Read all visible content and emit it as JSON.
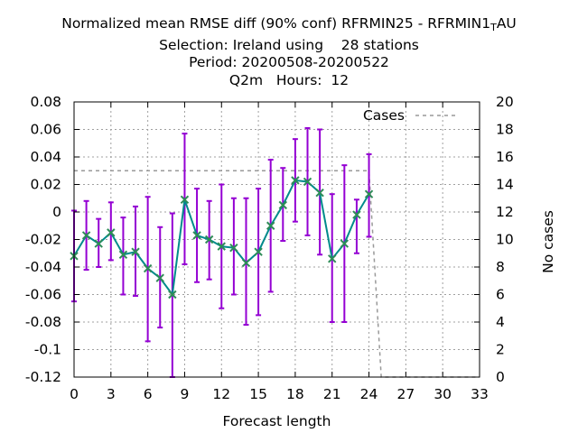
{
  "chart_data": {
    "type": "line",
    "title_lines": [
      "Normalized mean RMSE diff (90% conf) RFRMIN25 - RFRMIN1_TAU",
      "Selection: Ireland using    28 stations",
      "Period: 20200508-20200522",
      "Q2m   Hours:  12"
    ],
    "xlabel": "Forecast length",
    "ylabel": "",
    "y2label": "No cases",
    "xlim": [
      0,
      33
    ],
    "ylim": [
      -0.12,
      0.08
    ],
    "y2lim": [
      0,
      20
    ],
    "xticks": [
      "0",
      "3",
      "6",
      "9",
      "12",
      "15",
      "18",
      "21",
      "24",
      "27",
      "30",
      "33"
    ],
    "yticks": [
      "-0.12",
      "-0.1",
      "-0.08",
      "-0.06",
      "-0.04",
      "-0.02",
      "0",
      "0.02",
      "0.04",
      "0.06",
      "0.08"
    ],
    "y2ticks": [
      "0",
      "2",
      "4",
      "6",
      "8",
      "10",
      "12",
      "14",
      "16",
      "18",
      "20"
    ],
    "grid": true,
    "legend_position": "top-right",
    "series": [
      {
        "name": "",
        "color": "#008b8b",
        "marker_color": "#2e8b57",
        "x": [
          0,
          1,
          2,
          3,
          4,
          5,
          6,
          7,
          8,
          9,
          10,
          11,
          12,
          13,
          14,
          15,
          16,
          17,
          18,
          19,
          20,
          21,
          22,
          23,
          24
        ],
        "values": [
          -0.032,
          -0.017,
          -0.023,
          -0.015,
          -0.031,
          -0.029,
          -0.041,
          -0.048,
          -0.06,
          0.009,
          -0.017,
          -0.02,
          -0.025,
          -0.026,
          -0.037,
          -0.029,
          -0.01,
          0.005,
          0.023,
          0.022,
          0.014,
          -0.034,
          -0.023,
          -0.002,
          0.013
        ],
        "err_low": [
          -0.065,
          -0.042,
          -0.04,
          -0.035,
          -0.06,
          -0.061,
          -0.094,
          -0.084,
          -0.12,
          -0.038,
          -0.051,
          -0.049,
          -0.07,
          -0.06,
          -0.082,
          -0.075,
          -0.058,
          -0.021,
          -0.007,
          -0.017,
          -0.031,
          -0.08,
          -0.08,
          -0.03,
          -0.018
        ],
        "err_high": [
          0.001,
          0.008,
          -0.005,
          0.007,
          -0.004,
          0.004,
          0.011,
          -0.011,
          -0.001,
          0.057,
          0.017,
          0.008,
          0.02,
          0.01,
          0.01,
          0.017,
          0.038,
          0.032,
          0.053,
          0.061,
          0.06,
          0.013,
          0.034,
          0.009,
          0.042
        ],
        "error_color": "#9400d3"
      },
      {
        "name": "Cases",
        "axis": "y2",
        "color": "#999999",
        "style": "dashed",
        "x": [
          0,
          24,
          25,
          33
        ],
        "values": [
          15,
          15,
          0,
          0
        ]
      }
    ]
  }
}
